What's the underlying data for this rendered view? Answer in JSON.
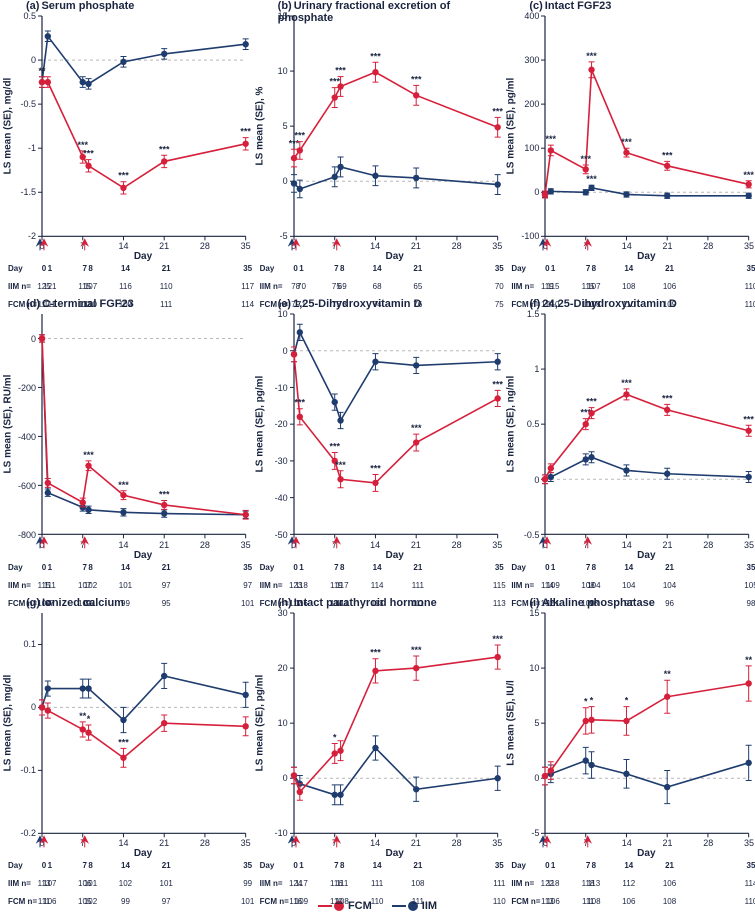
{
  "colors": {
    "fcm": "#d6203b",
    "iim": "#1f3c6e",
    "axis": "#1a2440",
    "grid": "#b8b8b8",
    "bg": "#ffffff"
  },
  "days": [
    0,
    1,
    7,
    8,
    14,
    21,
    35
  ],
  "xticks": [
    0,
    7,
    14,
    21,
    28,
    35
  ],
  "arrows_fcm": [
    0,
    7
  ],
  "arrows_iim": [
    0
  ],
  "legend": {
    "fcm": "FCM",
    "iim": "IIM"
  },
  "tbl_labels": {
    "day": "Day",
    "iim": "IIM n=",
    "fcm": "FCM n="
  },
  "xlabel": "Day",
  "marker_r": 3.2,
  "line_w": 1.6,
  "err_cap": 3,
  "panels": [
    {
      "key": "a",
      "title": "Serum phosphate",
      "unit": "LS mean (SE), mg/dl",
      "ylim": [
        -2,
        0.5
      ],
      "yticks": [
        -2,
        -1.5,
        -1,
        -0.5,
        0,
        0.5
      ],
      "fcm": {
        "x": [
          0,
          1,
          7,
          8,
          14,
          21,
          35
        ],
        "y": [
          -0.25,
          -0.25,
          -1.1,
          -1.2,
          -1.45,
          -1.15,
          -0.95
        ],
        "se": [
          0.06,
          0.06,
          0.07,
          0.07,
          0.07,
          0.07,
          0.07
        ],
        "sig": [
          "**",
          "",
          "***",
          "***",
          "***",
          "***",
          "***"
        ]
      },
      "iim": {
        "x": [
          0,
          1,
          7,
          8,
          14,
          21,
          35
        ],
        "y": [
          -0.25,
          0.27,
          -0.25,
          -0.27,
          -0.02,
          0.07,
          0.18
        ],
        "se": [
          0.06,
          0.06,
          0.06,
          0.06,
          0.06,
          0.06,
          0.06
        ],
        "sig": [
          "",
          "",
          "",
          "",
          "",
          "",
          ""
        ]
      },
      "tbl": {
        "iim": [
          125,
          121,
          115,
          107,
          116,
          110,
          117
        ],
        "fcm": [
          117,
          111,
          113,
          110,
          109,
          111,
          114
        ]
      }
    },
    {
      "key": "b",
      "title": "Urinary fractional excretion of phosphate",
      "unit": "LS mean (SE), %",
      "ylim": [
        -5,
        15
      ],
      "yticks": [
        -5,
        0,
        5,
        10,
        15
      ],
      "fcm": {
        "x": [
          0,
          1,
          7,
          8,
          14,
          21,
          35
        ],
        "y": [
          2.1,
          2.8,
          7.6,
          8.6,
          9.9,
          7.8,
          4.9
        ],
        "se": [
          0.8,
          0.8,
          0.9,
          0.9,
          0.9,
          0.9,
          0.9
        ],
        "sig": [
          "***",
          "***",
          "***",
          "***",
          "***",
          "***",
          "***"
        ]
      },
      "iim": {
        "x": [
          0,
          1,
          7,
          8,
          14,
          21,
          35
        ],
        "y": [
          -0.2,
          -0.7,
          0.4,
          1.3,
          0.5,
          0.3,
          -0.3
        ],
        "se": [
          0.8,
          0.8,
          0.9,
          0.9,
          0.9,
          0.9,
          0.9
        ],
        "sig": [
          "",
          "",
          "",
          "",
          "",
          "",
          ""
        ]
      },
      "tbl": {
        "iim": [
          78,
          70,
          75,
          69,
          68,
          65,
          70
        ],
        "fcm": [
          79,
          71,
          75,
          73,
          74,
          76,
          75
        ]
      }
    },
    {
      "key": "c",
      "title": "Intact FGF23",
      "unit": "LS mean (SE), pg/ml",
      "ylim": [
        -100,
        400
      ],
      "yticks": [
        -100,
        0,
        100,
        200,
        300,
        400
      ],
      "fcm": {
        "x": [
          0,
          1,
          7,
          8,
          14,
          21,
          35
        ],
        "y": [
          -5,
          95,
          52,
          278,
          90,
          60,
          18
        ],
        "se": [
          8,
          12,
          10,
          18,
          10,
          10,
          8
        ],
        "sig": [
          "",
          "***",
          "***",
          "***",
          "***",
          "***",
          "***"
        ]
      },
      "iim": {
        "x": [
          0,
          1,
          7,
          8,
          14,
          21,
          35
        ],
        "y": [
          -5,
          2,
          0,
          10,
          -5,
          -8,
          -8
        ],
        "se": [
          6,
          6,
          6,
          6,
          6,
          6,
          6
        ],
        "sig": [
          "",
          "",
          "",
          "***",
          "",
          "",
          ""
        ]
      },
      "tbl": {
        "iim": [
          119,
          115,
          115,
          107,
          108,
          106,
          110
        ],
        "fcm": [
          114,
          110,
          110,
          108,
          110,
          109,
          110
        ]
      }
    },
    {
      "key": "d",
      "title": "C-terminal FGF23",
      "unit": "LS mean (SE), RU/ml",
      "ylim": [
        -800,
        100
      ],
      "yticks": [
        -800,
        -600,
        -400,
        -200,
        0
      ],
      "fcm": {
        "x": [
          0,
          1,
          7,
          8,
          14,
          21,
          35
        ],
        "y": [
          0,
          -590,
          -670,
          -520,
          -640,
          -680,
          -720
        ],
        "se": [
          15,
          18,
          18,
          20,
          18,
          18,
          18
        ],
        "sig": [
          "",
          "",
          "",
          "***",
          "***",
          "***",
          ""
        ]
      },
      "iim": {
        "x": [
          0,
          1,
          7,
          8,
          14,
          21,
          35
        ],
        "y": [
          0,
          -630,
          -690,
          -700,
          -710,
          -715,
          -720
        ],
        "se": [
          15,
          15,
          15,
          15,
          15,
          15,
          15
        ],
        "sig": [
          "",
          "",
          "",
          "",
          "",
          "",
          ""
        ]
      },
      "tbl": {
        "iim": [
          115,
          111,
          107,
          102,
          101,
          97,
          97
        ],
        "fcm": [
          104,
          97,
          100,
          92,
          99,
          95,
          101
        ]
      }
    },
    {
      "key": "e",
      "title": "1,25-Dihydroxyvitamin D",
      "unit": "LS mean (SE), pg/ml",
      "ylim": [
        -50,
        10
      ],
      "yticks": [
        -50,
        -40,
        -30,
        -20,
        -10,
        0,
        10
      ],
      "fcm": {
        "x": [
          0,
          1,
          7,
          8,
          14,
          21,
          35
        ],
        "y": [
          -1,
          -18,
          -30,
          -35,
          -36,
          -25,
          -13
        ],
        "se": [
          2,
          2.2,
          2.3,
          2.3,
          2.3,
          2.3,
          2.2
        ],
        "sig": [
          "",
          "***",
          "***",
          "***",
          "***",
          "***",
          "***"
        ]
      },
      "iim": {
        "x": [
          0,
          1,
          7,
          8,
          14,
          21,
          35
        ],
        "y": [
          -1,
          5,
          -14,
          -19,
          -3,
          -4,
          -3
        ],
        "se": [
          2,
          2.2,
          2.2,
          2.2,
          2.2,
          2.2,
          2.2
        ],
        "sig": [
          "",
          "",
          "",
          "",
          "",
          "",
          ""
        ]
      },
      "tbl": {
        "iim": [
          123,
          118,
          119,
          117,
          114,
          111,
          115
        ],
        "fcm": [
          117,
          116,
          114,
          111,
          113,
          111,
          113
        ]
      }
    },
    {
      "key": "f",
      "title": "24,25-Dihydroxyvitamin D",
      "unit": "LS mean (SE), ng/ml",
      "ylim": [
        -0.5,
        1.5
      ],
      "yticks": [
        -0.5,
        0,
        0.5,
        1,
        1.5
      ],
      "fcm": {
        "x": [
          0,
          1,
          7,
          8,
          14,
          21,
          35
        ],
        "y": [
          0.0,
          0.1,
          0.5,
          0.6,
          0.77,
          0.63,
          0.44
        ],
        "se": [
          0.04,
          0.04,
          0.05,
          0.05,
          0.05,
          0.05,
          0.05
        ],
        "sig": [
          "",
          "",
          "***",
          "***",
          "***",
          "***",
          "***"
        ]
      },
      "iim": {
        "x": [
          0,
          1,
          7,
          8,
          14,
          21,
          35
        ],
        "y": [
          0.0,
          0.02,
          0.18,
          0.2,
          0.08,
          0.05,
          0.02
        ],
        "se": [
          0.04,
          0.04,
          0.05,
          0.05,
          0.05,
          0.05,
          0.05
        ],
        "sig": [
          "",
          "",
          "",
          "",
          "",
          "",
          ""
        ]
      },
      "tbl": {
        "iim": [
          114,
          109,
          108,
          104,
          104,
          104,
          105
        ],
        "fcm": [
          102,
          101,
          100,
          98,
          97,
          96,
          98
        ]
      }
    },
    {
      "key": "g",
      "title": "Ionized calcium",
      "unit": "LS mean (SE), mg/dl",
      "ylim": [
        -0.2,
        0.15
      ],
      "yticks": [
        -0.2,
        -0.1,
        0,
        0.1
      ],
      "fcm": {
        "x": [
          0,
          1,
          7,
          8,
          14,
          21,
          35
        ],
        "y": [
          0.0,
          -0.005,
          -0.035,
          -0.04,
          -0.08,
          -0.025,
          -0.03
        ],
        "se": [
          0.012,
          0.012,
          0.012,
          0.012,
          0.015,
          0.013,
          0.015
        ],
        "sig": [
          "",
          "",
          "**",
          "*",
          "***",
          "",
          ""
        ]
      },
      "iim": {
        "x": [
          0,
          1,
          7,
          8,
          14,
          21,
          35
        ],
        "y": [
          0.0,
          0.03,
          0.03,
          0.03,
          -0.02,
          0.05,
          0.02
        ],
        "se": [
          0.012,
          0.012,
          0.015,
          0.015,
          0.02,
          0.02,
          0.02
        ],
        "sig": [
          "",
          "",
          "",
          "",
          "",
          "",
          ""
        ]
      },
      "tbl": {
        "iim": [
          113,
          107,
          106,
          101,
          102,
          101,
          99
        ],
        "fcm": [
          111,
          106,
          105,
          102,
          99,
          97,
          101
        ]
      }
    },
    {
      "key": "h",
      "title": "Intact parathyroid hormone",
      "unit": "LS mean (SE), pg/ml",
      "ylim": [
        -10,
        30
      ],
      "yticks": [
        -10,
        0,
        10,
        20,
        30
      ],
      "fcm": {
        "x": [
          0,
          1,
          7,
          8,
          14,
          21,
          35
        ],
        "y": [
          0.5,
          -2.5,
          4.5,
          5,
          19.5,
          20,
          22
        ],
        "se": [
          1.5,
          1.5,
          1.8,
          1.8,
          2.2,
          2.2,
          2.2
        ],
        "sig": [
          "",
          "",
          "*",
          "",
          "***",
          "***",
          "***"
        ]
      },
      "iim": {
        "x": [
          0,
          1,
          7,
          8,
          14,
          21,
          35
        ],
        "y": [
          0.5,
          -1,
          -3,
          -3,
          5.5,
          -2,
          0
        ],
        "se": [
          1.5,
          1.5,
          1.8,
          1.8,
          2.2,
          2.2,
          2.2
        ],
        "sig": [
          "",
          "",
          "",
          "",
          "",
          "",
          ""
        ]
      },
      "tbl": {
        "iim": [
          124,
          117,
          116,
          111,
          111,
          108,
          111
        ],
        "fcm": [
          116,
          109,
          110,
          108,
          110,
          111,
          110
        ]
      }
    },
    {
      "key": "i",
      "title": "Alkaline phosphatase",
      "unit": "LS mean (SE), IU/l",
      "ylim": [
        -5,
        15
      ],
      "yticks": [
        -5,
        0,
        5,
        10,
        15
      ],
      "fcm": {
        "x": [
          0,
          1,
          7,
          8,
          14,
          21,
          35
        ],
        "y": [
          0.2,
          0.7,
          5.2,
          5.3,
          5.2,
          7.4,
          8.6
        ],
        "se": [
          0.8,
          0.8,
          1.2,
          1.2,
          1.3,
          1.5,
          1.6
        ],
        "sig": [
          "",
          "",
          "*",
          "*",
          "*",
          "**",
          "**"
        ]
      },
      "iim": {
        "x": [
          0,
          1,
          7,
          8,
          14,
          21,
          35
        ],
        "y": [
          0.2,
          0.4,
          1.6,
          1.2,
          0.4,
          -0.8,
          1.4
        ],
        "se": [
          0.8,
          0.8,
          1.2,
          1.2,
          1.3,
          1.5,
          1.6
        ],
        "sig": [
          "",
          "",
          "",
          "",
          "",
          "",
          ""
        ]
      },
      "tbl": {
        "iim": [
          122,
          118,
          118,
          113,
          112,
          106,
          114
        ],
        "fcm": [
          113,
          106,
          111,
          108,
          106,
          108,
          110
        ]
      }
    }
  ]
}
